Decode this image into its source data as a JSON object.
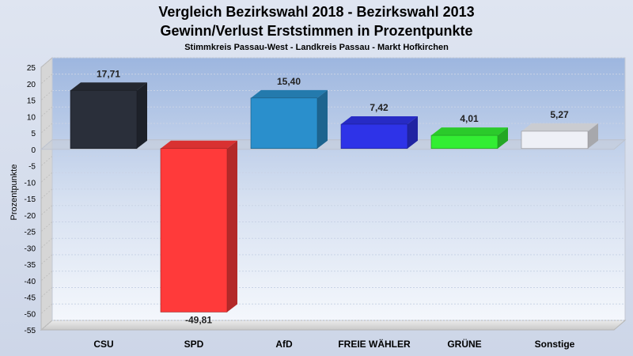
{
  "header": {
    "title_line1": "Vergleich Bezirkswahl 2018 - Bezirkswahl 2013",
    "title_line2": "Gewinn/Verlust Erststimmen in Prozentpunkte",
    "subtitle": "Stimmkreis Passau-West - Landkreis Passau - Markt Hofkirchen"
  },
  "chart_data": {
    "type": "bar",
    "title": "Vergleich Bezirkswahl 2018 - Bezirkswahl 2013 / Gewinn/Verlust Erststimmen in Prozentpunkte",
    "subtitle": "Stimmkreis Passau-West - Landkreis Passau - Markt Hofkirchen",
    "xlabel": "",
    "ylabel": "Prozentpunkte",
    "ylim": [
      -55,
      25
    ],
    "yticks": [
      25,
      20,
      15,
      10,
      5,
      0,
      -5,
      -10,
      -15,
      -20,
      -25,
      -30,
      -35,
      -40,
      -45,
      -50,
      -55
    ],
    "grid": true,
    "legend": "none",
    "categories": [
      "CSU",
      "SPD",
      "AfD",
      "FREIE WÄHLER",
      "GRÜNE",
      "Sonstige"
    ],
    "values": [
      17.71,
      -49.81,
      15.4,
      7.42,
      4.01,
      5.27
    ],
    "value_labels": [
      "17,71",
      "-49,81",
      "15,40",
      "7,42",
      "4,01",
      "5,27"
    ],
    "colors": [
      "#2a2f3a",
      "#ff3a3a",
      "#2a8fcc",
      "#2e33e8",
      "#33ee33",
      "#eef0f6"
    ]
  }
}
